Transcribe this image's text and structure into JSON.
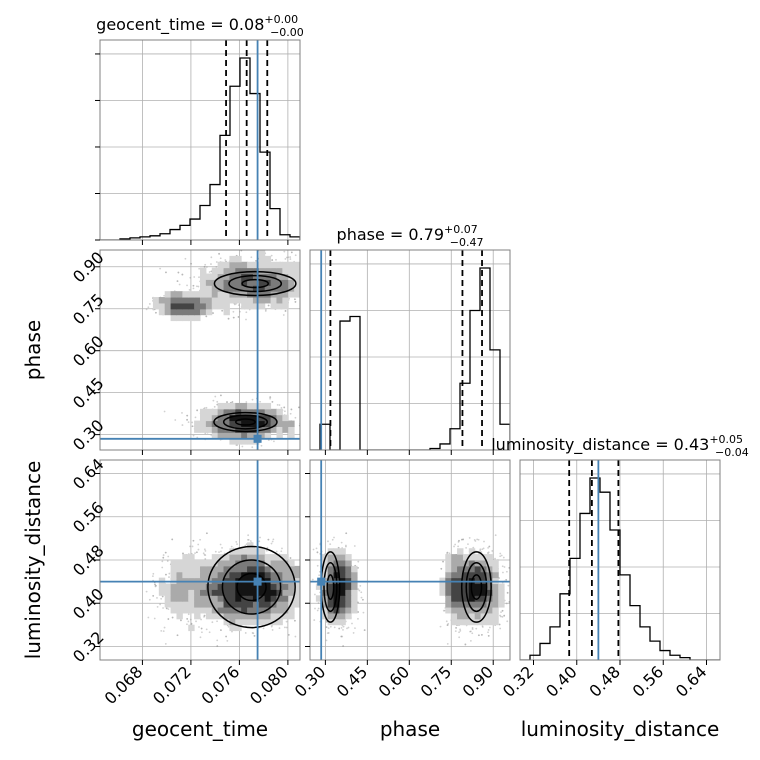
{
  "chart_data": {
    "type": "corner",
    "parameters": [
      "geocent_time",
      "phase",
      "luminosity_distance"
    ],
    "axis_labels": [
      "geocent_time",
      "phase",
      "luminosity_distance"
    ],
    "ranges": [
      [
        0.0645,
        0.081
      ],
      [
        0.245,
        0.96
      ],
      [
        0.295,
        0.665
      ]
    ],
    "ticks": {
      "geocent_time": [
        0.068,
        0.072,
        0.076,
        0.08
      ],
      "phase": [
        0.3,
        0.45,
        0.6,
        0.75,
        0.9
      ],
      "luminosity_distance": [
        0.32,
        0.4,
        0.48,
        0.56,
        0.64
      ]
    },
    "tick_labels": {
      "geocent_time": [
        "0.068",
        "0.072",
        "0.076",
        "0.080"
      ],
      "phase": [
        "0.30",
        "0.45",
        "0.60",
        "0.75",
        "0.90"
      ],
      "luminosity_distance": [
        "0.32",
        "0.40",
        "0.48",
        "0.56",
        "0.64"
      ]
    },
    "titles": [
      {
        "main": "geocent_time = 0.08",
        "sup": "+0.00",
        "sub": "−0.00"
      },
      {
        "main": "phase = 0.79",
        "sup": "+0.07",
        "sub": "−0.47"
      },
      {
        "main": "luminosity_distance = 0.43",
        "sup": "+0.05",
        "sub": "−0.04"
      }
    ],
    "truths": [
      0.0775,
      0.285,
      0.44
    ],
    "quantiles": [
      [
        0.0749,
        0.0766,
        0.0783
      ],
      [
        0.318,
        0.79,
        0.86
      ],
      [
        0.386,
        0.428,
        0.477
      ]
    ],
    "histograms": [
      {
        "edges_range": [
          0.0645,
          0.081
        ],
        "counts": [
          0,
          0,
          1,
          2,
          3,
          4,
          6,
          10,
          14,
          20,
          33,
          53,
          100,
          147,
          174,
          140,
          84,
          30,
          5,
          3
        ]
      },
      {
        "edges_range": [
          0.245,
          0.96
        ],
        "counts": [
          0,
          17,
          0,
          85,
          88,
          0,
          0,
          0,
          0,
          0,
          0,
          0,
          1,
          4,
          14,
          44,
          92,
          120,
          66,
          17
        ]
      },
      {
        "edges_range": [
          0.295,
          0.665
        ],
        "counts": [
          0,
          2,
          7,
          14,
          28,
          43,
          62,
          77,
          71,
          55,
          36,
          23,
          14,
          8,
          4,
          2,
          1,
          0,
          0,
          0
        ]
      }
    ],
    "clusters": [
      {
        "x": 0.077,
        "y": 0.84,
        "sx": 0.0024,
        "sy": 0.045,
        "w": 0.6
      },
      {
        "x": 0.0765,
        "y": 0.345,
        "sx": 0.002,
        "sy": 0.03,
        "w": 0.4
      }
    ],
    "lumdist": {
      "mean": 0.43,
      "sd": 0.035
    },
    "grid": true
  }
}
